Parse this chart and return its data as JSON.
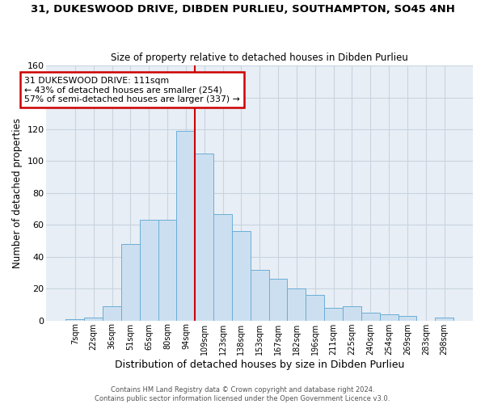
{
  "title": "31, DUKESWOOD DRIVE, DIBDEN PURLIEU, SOUTHAMPTON, SO45 4NH",
  "subtitle": "Size of property relative to detached houses in Dibden Purlieu",
  "xlabel": "Distribution of detached houses by size in Dibden Purlieu",
  "ylabel": "Number of detached properties",
  "bar_labels": [
    "7sqm",
    "22sqm",
    "36sqm",
    "51sqm",
    "65sqm",
    "80sqm",
    "94sqm",
    "109sqm",
    "123sqm",
    "138sqm",
    "153sqm",
    "167sqm",
    "182sqm",
    "196sqm",
    "211sqm",
    "225sqm",
    "240sqm",
    "254sqm",
    "269sqm",
    "283sqm",
    "298sqm"
  ],
  "bar_heights": [
    1,
    2,
    9,
    48,
    63,
    63,
    119,
    105,
    67,
    56,
    32,
    26,
    20,
    16,
    8,
    9,
    5,
    4,
    3,
    0,
    2
  ],
  "bar_color": "#ccdff0",
  "bar_edge_color": "#6aaed6",
  "vline_x": 6.5,
  "vline_color": "#cc0000",
  "annotation_title": "31 DUKESWOOD DRIVE: 111sqm",
  "annotation_line1": "← 43% of detached houses are smaller (254)",
  "annotation_line2": "57% of semi-detached houses are larger (337) →",
  "annotation_box_color": "white",
  "annotation_box_edge": "#cc0000",
  "ylim": [
    0,
    160
  ],
  "yticks": [
    0,
    20,
    40,
    60,
    80,
    100,
    120,
    140,
    160
  ],
  "footer1": "Contains HM Land Registry data © Crown copyright and database right 2024.",
  "footer2": "Contains public sector information licensed under the Open Government Licence v3.0.",
  "bg_color": "#e8eef5",
  "grid_color": "#c8d4e0"
}
